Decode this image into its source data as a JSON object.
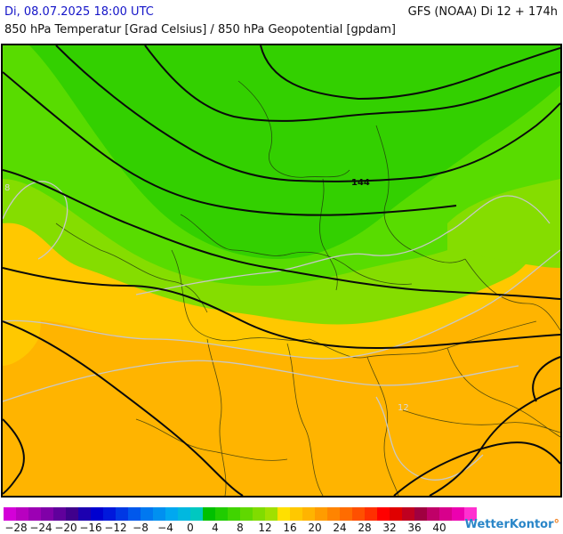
{
  "header": {
    "datetime": "Di, 08.07.2025 18:00 UTC",
    "model": "GFS (NOAA) Di 12 + 174h",
    "title": "850 hPa Temperatur [Grad Celsius] / 850 hPa Geopotential [gpdam]"
  },
  "map": {
    "isoline_labels": [
      "144",
      "8",
      "12"
    ],
    "field_colors": {
      "dark_green": "#33d000",
      "green": "#58dc00",
      "yellow_green": "#85dd00",
      "yellow": "#ffc800",
      "orange": "#ffb400"
    }
  },
  "legend": {
    "labels": [
      "−28",
      "−24",
      "−20",
      "−16",
      "−12",
      "−8",
      "−4",
      "0",
      "4",
      "8",
      "12",
      "16",
      "20",
      "24",
      "28",
      "32",
      "36",
      "40"
    ],
    "colors": [
      "#d400d8",
      "#b800c0",
      "#9c00b4",
      "#8000a8",
      "#60009c",
      "#40008c",
      "#1c00b0",
      "#0000d0",
      "#0018dc",
      "#0038e4",
      "#0058ec",
      "#0078f0",
      "#0090f0",
      "#00a8f0",
      "#00b8e0",
      "#00c8c0",
      "#00c000",
      "#20cc00",
      "#40d400",
      "#60d800",
      "#80dc00",
      "#a0e000",
      "#ffe000",
      "#ffc800",
      "#ffb400",
      "#ff9c00",
      "#ff8400",
      "#ff6c00",
      "#ff5000",
      "#ff3000",
      "#ff0000",
      "#e00000",
      "#c00020",
      "#a00040",
      "#c00068",
      "#d8008c",
      "#ec00b0",
      "#ff30d0"
    ]
  },
  "brand": {
    "name": "WetterKontor"
  }
}
